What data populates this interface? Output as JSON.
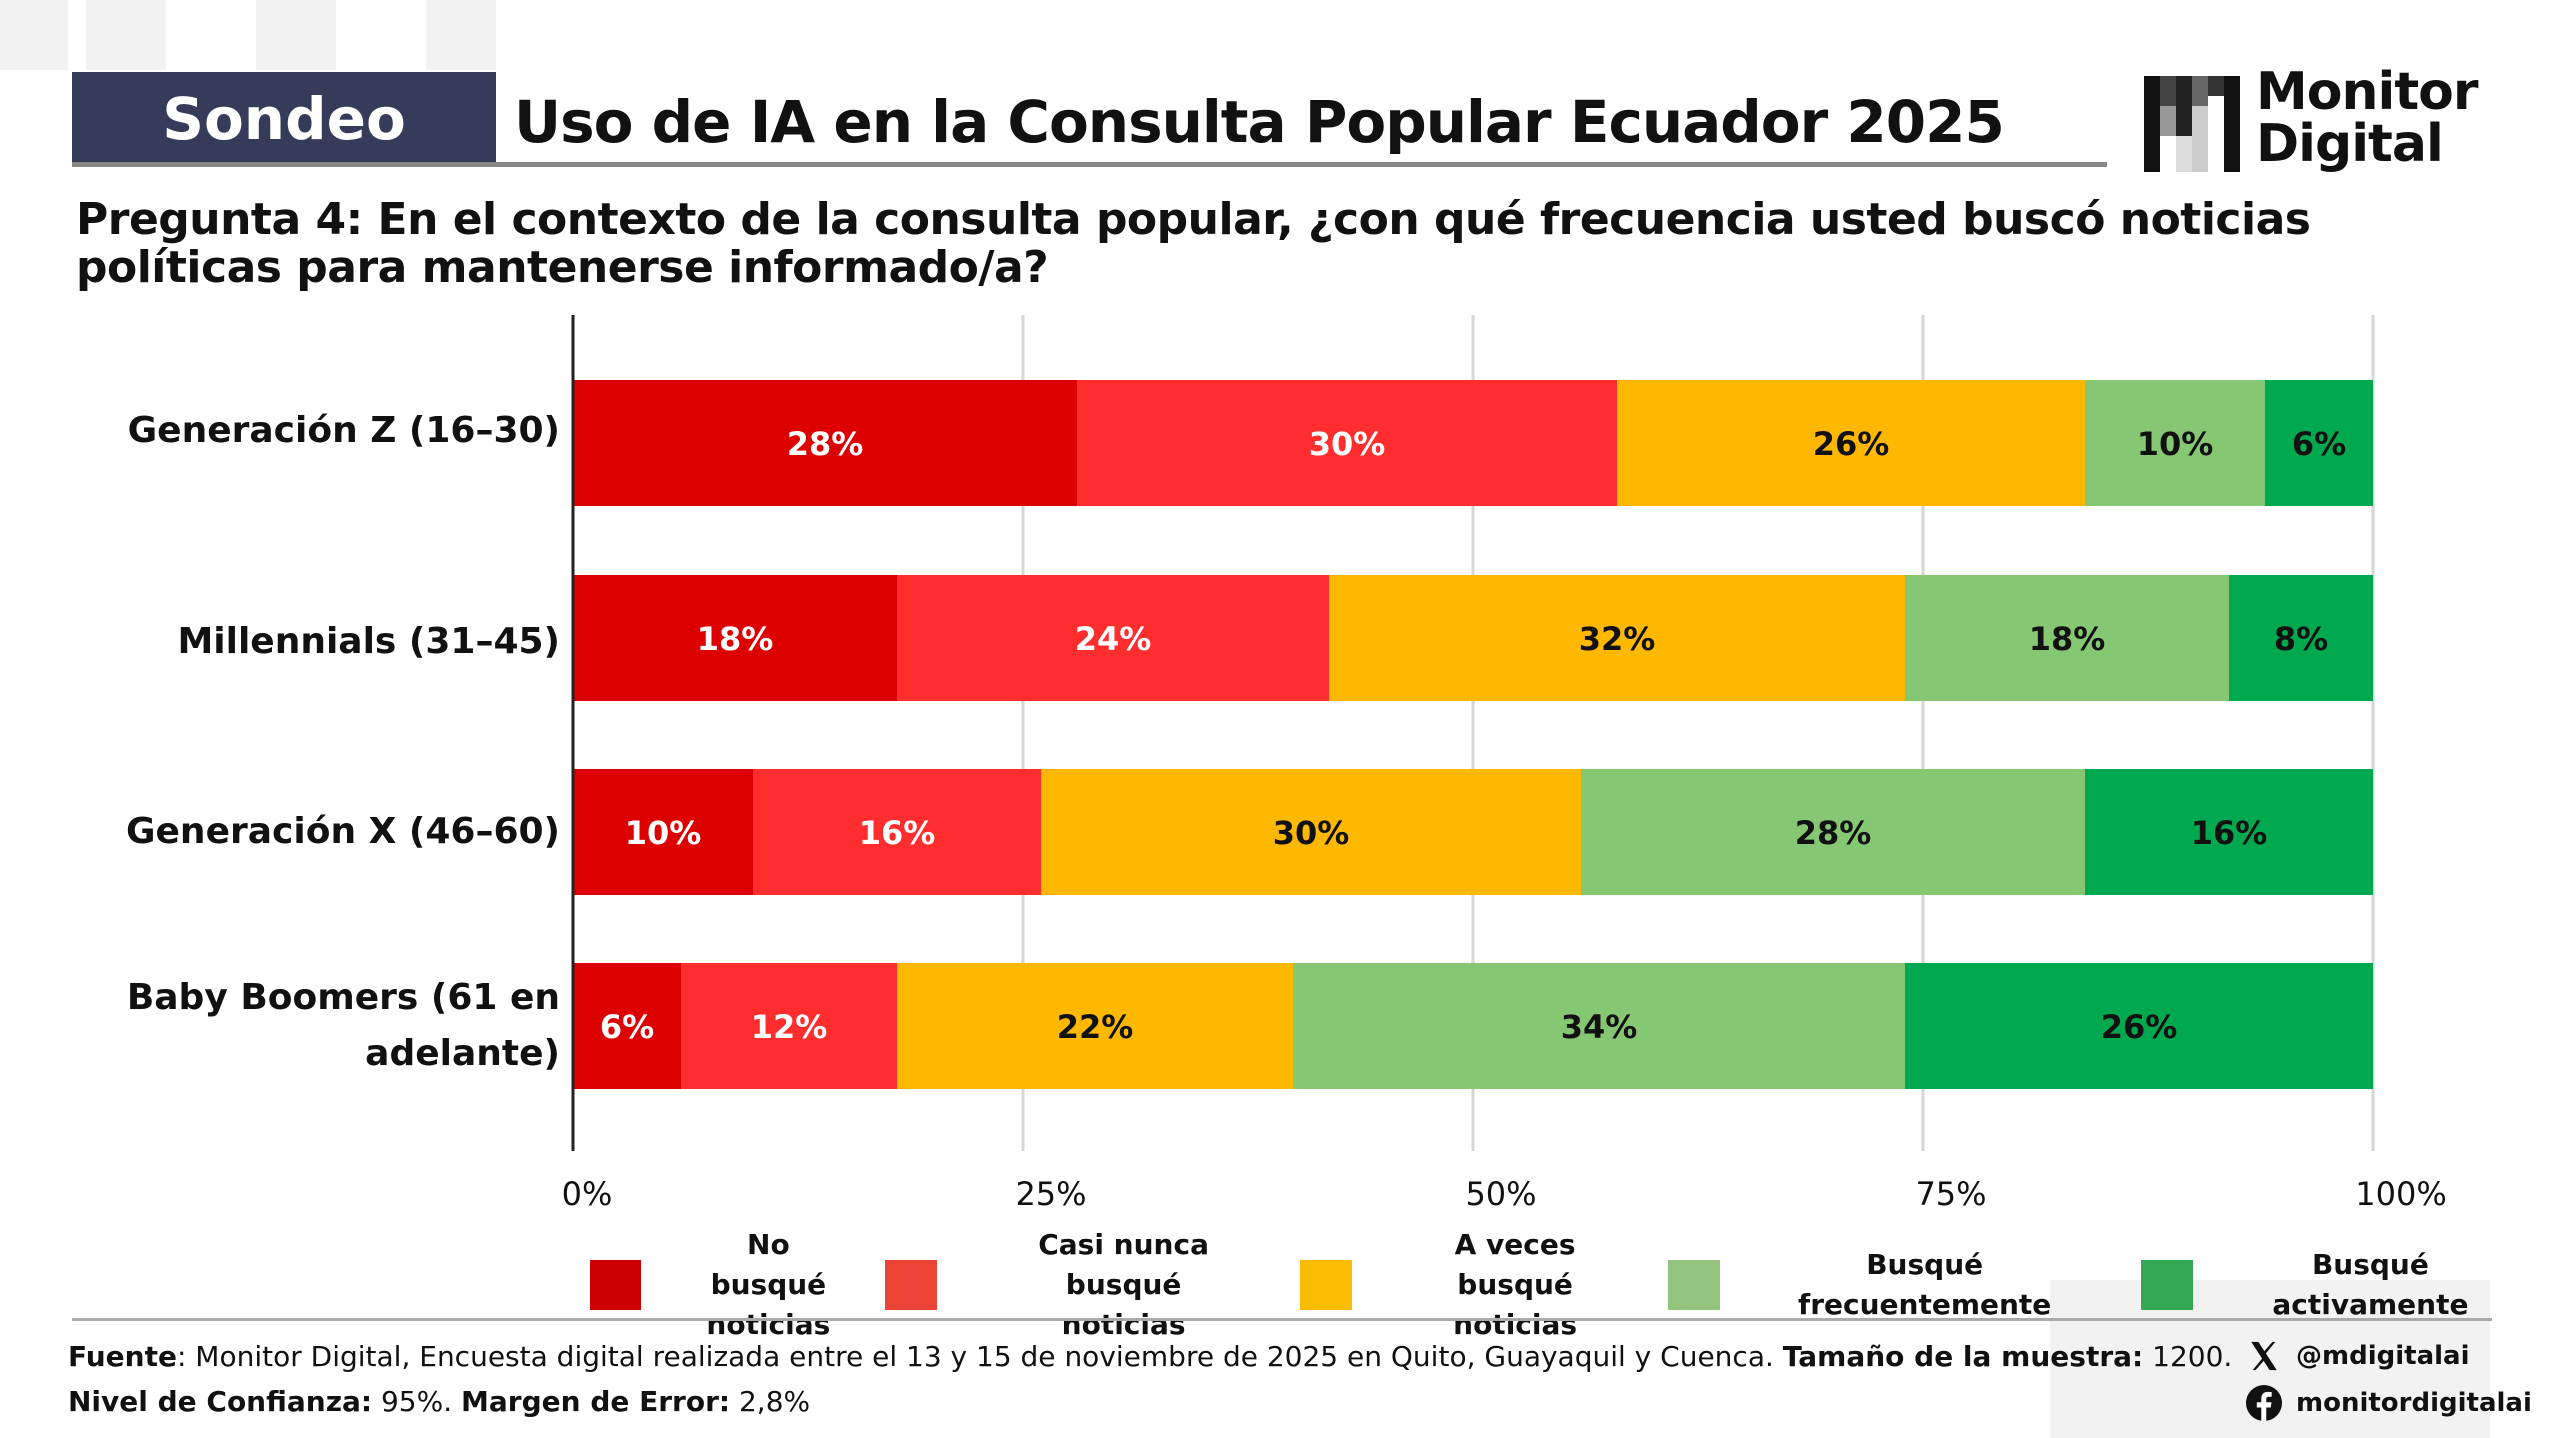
{
  "header": {
    "badge": "Sondeo",
    "title": "Uso de IA en la Consulta Popular Ecuador 2025",
    "logo_text": [
      "Monitor",
      "Digital"
    ]
  },
  "question": "Pregunta 4: En el contexto de la consulta popular, ¿con qué frecuencia usted buscó noticias políticas para mantenerse informado/a?",
  "chart_data": {
    "type": "bar",
    "orientation": "horizontal",
    "stacked": true,
    "categories": [
      "Generación Z (16–30)",
      "Millennials (31–45)",
      "Generación X (46–60)",
      "Baby Boomers (61 en adelante)"
    ],
    "series": [
      {
        "name": "No busqué noticias",
        "color": "#DD0000",
        "legend_color": "#CC0000",
        "values": [
          28,
          18,
          10,
          6
        ]
      },
      {
        "name": "Casi nunca busqué noticias",
        "color": "#FF2D2D",
        "legend_color": "#EA4335",
        "values": [
          30,
          24,
          16,
          12
        ]
      },
      {
        "name": "A veces busqué noticias",
        "color": "#FFB800",
        "legend_color": "#FBBC04",
        "values": [
          26,
          32,
          30,
          22
        ]
      },
      {
        "name": "Busqué frecuentemente",
        "color": "#86C774",
        "legend_color": "#93C47D",
        "values": [
          10,
          18,
          28,
          34
        ]
      },
      {
        "name": "Busqué activamente",
        "color": "#00A84F",
        "legend_color": "#34A853",
        "values": [
          6,
          8,
          16,
          26
        ]
      }
    ],
    "xticks": [
      "0%",
      "25%",
      "50%",
      "75%",
      "100%"
    ],
    "xlim": [
      0,
      100
    ],
    "grid": true,
    "legend_position": "bottom"
  },
  "legend_lines": [
    [
      "No busqué",
      "noticias"
    ],
    [
      "Casi nunca busqué",
      "noticias"
    ],
    [
      "A veces busqué",
      "noticias"
    ],
    [
      "Busqué frecuentemente"
    ],
    [
      "Busqué activamente"
    ]
  ],
  "category_lines": [
    [
      "Generación Z (16–30)"
    ],
    [
      "Millennials (31–45)"
    ],
    [
      "Generación X (46–60)"
    ],
    [
      "Baby Boomers (61 en",
      "adelante)"
    ]
  ],
  "footer": {
    "line1_b1": "Fuente",
    "line1_t1": ": Monitor Digital, Encuesta digital realizada entre el 13 y 15 de noviembre de 2025 en Quito, Guayaquil y Cuenca. ",
    "line1_b2": "Tamaño de la muestra:",
    "line1_t2": " 1200.",
    "line2_b1": "Nivel de Confianza:",
    "line2_t1": " 95%. ",
    "line2_b2": "Margen de Error:",
    "line2_t2": " 2,8%",
    "x_handle": "@mdigitalai",
    "facebook_handle": "monitordigitalai"
  }
}
